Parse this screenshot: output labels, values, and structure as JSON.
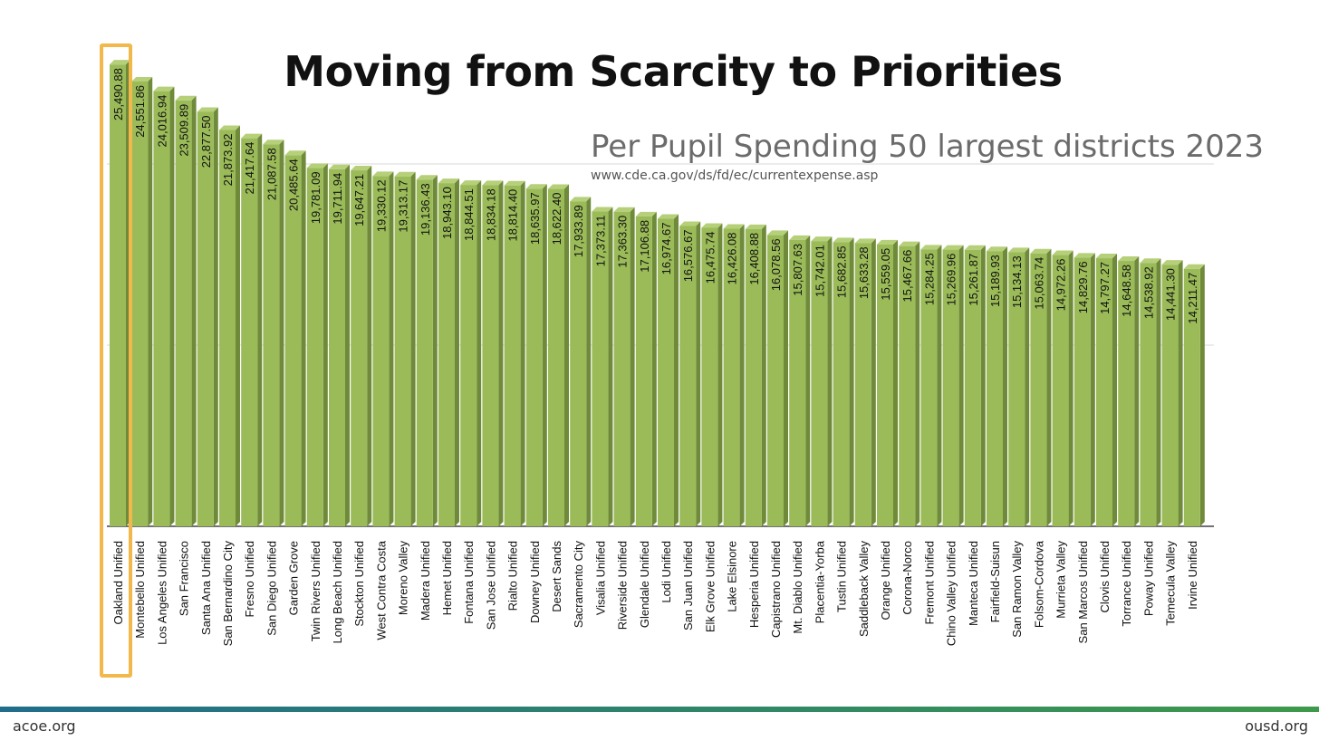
{
  "slide": {
    "title": "Moving from Scarcity to Priorities",
    "footer_left": "acoe.org",
    "footer_right": "ousd.org"
  },
  "colors": {
    "bar_front": "#9bbb59",
    "bar_side": "#6f8a3a",
    "bar_top": "#b6d07a",
    "highlight": "#f2b84b",
    "footer_start": "#1f6e8c",
    "footer_end": "#3d9a4a"
  },
  "chart_data": {
    "type": "bar",
    "title": "Per Pupil Spending 50 largest districts 2023",
    "source": "www.cde.ca.gov/ds/fd/ec/currentexpense.asp",
    "ylim": [
      0,
      25700
    ],
    "grid": true,
    "highlighted_category": "Oakland Unified",
    "categories": [
      "Oakland Unified",
      "Montebello Unified",
      "Los Angeles Unified",
      "San Francisco",
      "Santa Ana Unified",
      "San Bernardino City",
      "Fresno Unified",
      "San Diego Unified",
      "Garden Grove",
      "Twin Rivers Unified",
      "Long Beach Unified",
      "Stockton Unified",
      "West Contra Costa",
      "Moreno Valley",
      "Madera Unified",
      "Hemet Unified",
      "Fontana Unified",
      "San Jose Unified",
      "Rialto Unified",
      "Downey Unified",
      "Desert Sands",
      "Sacramento City",
      "Visalia Unified",
      "Riverside Unified",
      "Glendale Unified",
      "Lodi Unified",
      "San Juan Unified",
      "Elk Grove Unified",
      "Lake Elsinore",
      "Hesperia Unified",
      "Capistrano Unified",
      "Mt. Diablo Unified",
      "Placentia-Yorba",
      "Tustin Unified",
      "Saddleback Valley",
      "Orange Unified",
      "Corona-Norco",
      "Fremont Unified",
      "Chino Valley Unified",
      "Manteca Unified",
      "Fairfield-Suisun",
      "San Ramon Valley",
      "Folsom-Cordova",
      "Murrieta Valley",
      "San Marcos Unified",
      "Clovis Unified",
      "Torrance Unified",
      "Poway Unified",
      "Temecula Valley",
      "Irvine Unified"
    ],
    "values": [
      25490.88,
      24551.86,
      24016.94,
      23509.89,
      22877.5,
      21873.92,
      21417.64,
      21087.58,
      20485.64,
      19781.09,
      19711.94,
      19647.21,
      19330.12,
      19313.17,
      19136.43,
      18943.1,
      18844.51,
      18834.18,
      18814.4,
      18635.97,
      18622.4,
      17933.89,
      17373.11,
      17363.3,
      17106.88,
      16974.67,
      16576.67,
      16475.74,
      16426.08,
      16408.88,
      16078.56,
      15807.63,
      15742.01,
      15682.85,
      15633.28,
      15559.05,
      15467.66,
      15284.25,
      15269.96,
      15261.87,
      15189.93,
      15134.13,
      15063.74,
      14972.26,
      14829.76,
      14797.27,
      14648.58,
      14538.92,
      14441.3,
      14211.47
    ],
    "value_labels": [
      "25,490.88",
      "24,551.86",
      "24,016.94",
      "23,509.89",
      "22,877.50",
      "21,873.92",
      "21,417.64",
      "21,087.58",
      "20,485.64",
      "19,781.09",
      "19,711.94",
      "19,647.21",
      "19,330.12",
      "19,313.17",
      "19,136.43",
      "18,943.10",
      "18,844.51",
      "18,834.18",
      "18,814.40",
      "18,635.97",
      "18,622.40",
      "17,933.89",
      "17,373.11",
      "17,363.30",
      "17,106.88",
      "16,974.67",
      "16,576.67",
      "16,475.74",
      "16,426.08",
      "16,408.88",
      "16,078.56",
      "15,807.63",
      "15,742.01",
      "15,682.85",
      "15,633.28",
      "15,559.05",
      "15,467.66",
      "15,284.25",
      "15,269.96",
      "15,261.87",
      "15,189.93",
      "15,134.13",
      "15,063.74",
      "14,972.26",
      "14,829.76",
      "14,797.27",
      "14,648.58",
      "14,538.92",
      "14,441.30",
      "14,211.47"
    ]
  }
}
